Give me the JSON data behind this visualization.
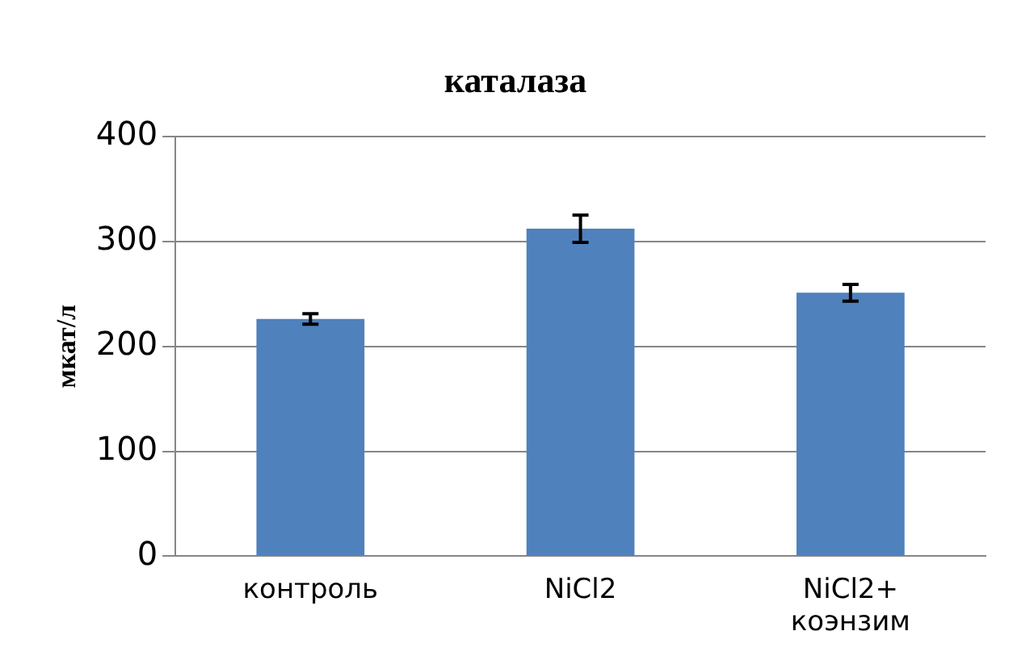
{
  "chart_data": {
    "type": "bar",
    "title": "каталаза",
    "ylabel": "мкат/л",
    "categories": [
      "контроль",
      "NiCl2",
      "NiCl2+ коэнзим"
    ],
    "values": [
      226,
      312,
      251
    ],
    "errors": [
      5,
      13,
      8
    ],
    "color": "#4f81bd",
    "ylim": [
      0,
      400
    ],
    "yticks": [
      0,
      100,
      200,
      300,
      400
    ],
    "grid": "y",
    "legend": false
  }
}
